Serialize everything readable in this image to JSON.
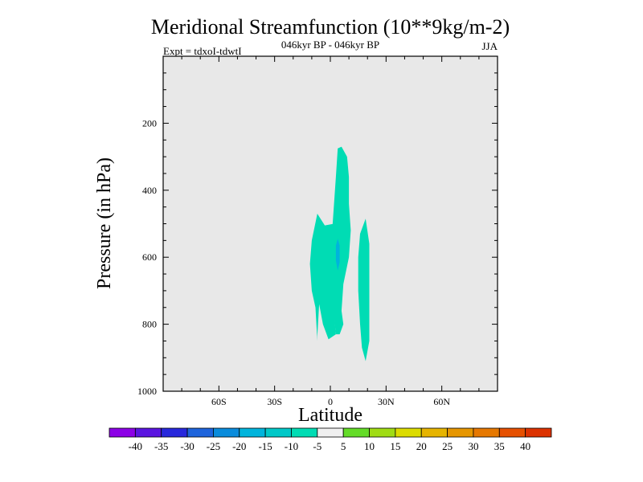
{
  "chart_data": {
    "type": "heatmap",
    "title": "Meridional Streamfunction (10**9kg/m-2)",
    "subtitle_center": "046kyr BP - 046kyr BP",
    "subtitle_left": "Expt = tdxoI-tdwtI",
    "subtitle_right": "JJA",
    "xlabel": "Latitude",
    "ylabel": "Pressure (in hPa)",
    "xlim": [
      -90,
      90
    ],
    "ylim": [
      0,
      1000
    ],
    "y_inverted": true,
    "grid": false,
    "x_ticks": [
      {
        "value": -60,
        "label": "60S"
      },
      {
        "value": -30,
        "label": "30S"
      },
      {
        "value": 0,
        "label": "0"
      },
      {
        "value": 30,
        "label": "30N"
      },
      {
        "value": 60,
        "label": "60N"
      }
    ],
    "y_ticks": [
      {
        "value": 200,
        "label": "200"
      },
      {
        "value": 400,
        "label": "400"
      },
      {
        "value": 600,
        "label": "600"
      },
      {
        "value": 800,
        "label": "800"
      },
      {
        "value": 1000,
        "label": "1000"
      }
    ],
    "background_level": "-5 to 5",
    "background_color": "#e8e8e8",
    "contour_regions": [
      {
        "level": "-10 to -5",
        "color": "#00dcb4",
        "outline": [
          [
            -7,
            470
          ],
          [
            -3,
            505
          ],
          [
            2,
            500
          ],
          [
            5,
            530
          ],
          [
            6,
            600
          ],
          [
            3,
            680
          ],
          [
            2,
            770
          ],
          [
            3,
            830
          ],
          [
            -1,
            845
          ],
          [
            -4,
            800
          ],
          [
            -6,
            740
          ],
          [
            -7,
            835
          ],
          [
            -7,
            850
          ],
          [
            -8,
            750
          ],
          [
            -10,
            700
          ],
          [
            -11,
            620
          ],
          [
            -10,
            550
          ]
        ]
      },
      {
        "level": "-10 to -5",
        "color": "#00dcb4",
        "outline": [
          [
            4,
            275
          ],
          [
            6,
            270
          ],
          [
            9,
            300
          ],
          [
            10,
            360
          ],
          [
            10,
            440
          ],
          [
            11,
            520
          ],
          [
            10,
            600
          ],
          [
            7,
            680
          ],
          [
            6,
            760
          ],
          [
            7,
            800
          ],
          [
            5,
            830
          ],
          [
            3,
            830
          ],
          [
            2,
            780
          ],
          [
            1,
            700
          ],
          [
            1,
            600
          ],
          [
            1,
            520
          ],
          [
            2,
            440
          ],
          [
            3,
            360
          ]
        ]
      },
      {
        "level": "-10 to -5",
        "color": "#00dcb4",
        "outline": [
          [
            19,
            485
          ],
          [
            21,
            560
          ],
          [
            21,
            650
          ],
          [
            21,
            750
          ],
          [
            21,
            850
          ],
          [
            19,
            910
          ],
          [
            17,
            870
          ],
          [
            16,
            800
          ],
          [
            15,
            700
          ],
          [
            15,
            600
          ],
          [
            16,
            530
          ]
        ]
      },
      {
        "level": "-15 to -10",
        "color": "#00b4dc",
        "outline": [
          [
            4,
            545
          ],
          [
            5,
            565
          ],
          [
            5,
            615
          ],
          [
            4,
            640
          ],
          [
            3,
            610
          ],
          [
            3,
            565
          ]
        ]
      }
    ],
    "colorbar": {
      "labels": [
        "-40",
        "-35",
        "-30",
        "-25",
        "-20",
        "-15",
        "-10",
        "-5",
        "5",
        "10",
        "15",
        "20",
        "25",
        "30",
        "35",
        "40"
      ],
      "colors": [
        "#8c00e6",
        "#5a14e0",
        "#2828dc",
        "#1e64dc",
        "#0a8cdc",
        "#00b4dc",
        "#00c8c8",
        "#00dcb4",
        "#f0f0f0",
        "#64dc28",
        "#a0dc14",
        "#dcdc00",
        "#e6b400",
        "#e69600",
        "#e67800",
        "#e65000",
        "#dc3200"
      ]
    }
  }
}
